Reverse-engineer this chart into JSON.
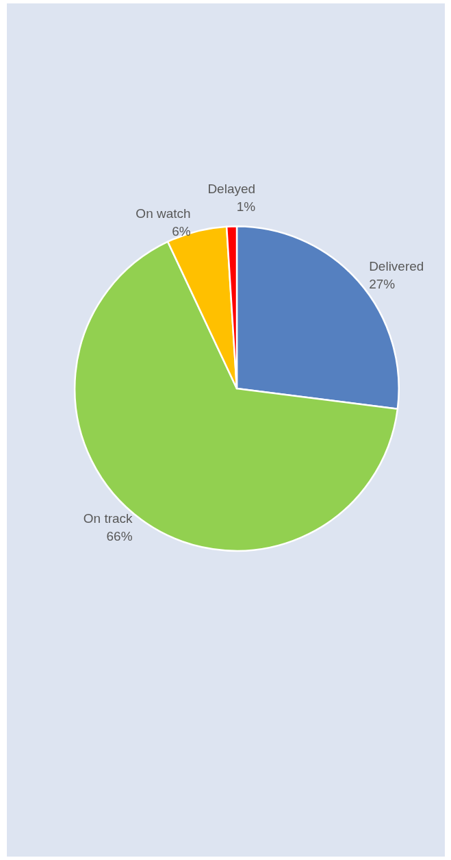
{
  "chart_data": {
    "type": "pie",
    "categories": [
      "Delivered",
      "On track",
      "On watch",
      "Delayed"
    ],
    "values": [
      27,
      66,
      6,
      1
    ],
    "colors": [
      "#5580c0",
      "#92d050",
      "#ffc000",
      "#ff0000"
    ],
    "value_labels": [
      "27%",
      "66%",
      "6%",
      "1%"
    ]
  }
}
